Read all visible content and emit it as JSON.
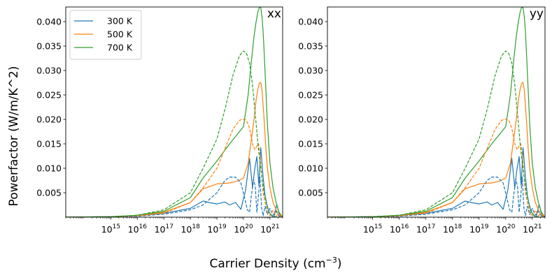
{
  "figure": {
    "ylabel": "Powerfactor (W/m/K^2)",
    "xlabel_prefix": "Carrier Density (cm",
    "xlabel_exp": "−3",
    "xlabel_suffix": ")"
  },
  "chart_data": [
    {
      "type": "line",
      "panel_label": "xx",
      "xscale": "log",
      "xlim": [
        20000000000000.0,
        3e+21
      ],
      "ylim": [
        0,
        0.043
      ],
      "x_ticks": [
        1000000000000000.0,
        1e+16,
        1e+17,
        1e+18,
        1e+19,
        1e+20,
        1e+21
      ],
      "x_tick_labels": [
        {
          "base": "10",
          "exp": "15"
        },
        {
          "base": "10",
          "exp": "16"
        },
        {
          "base": "10",
          "exp": "17"
        },
        {
          "base": "10",
          "exp": "18"
        },
        {
          "base": "10",
          "exp": "19"
        },
        {
          "base": "10",
          "exp": "20"
        },
        {
          "base": "10",
          "exp": "21"
        }
      ],
      "y_ticks": [
        0.005,
        0.01,
        0.015,
        0.02,
        0.025,
        0.03,
        0.035,
        0.04
      ],
      "y_tick_labels": [
        "0.005",
        "0.010",
        "0.015",
        "0.020",
        "0.025",
        "0.030",
        "0.035",
        "0.040"
      ],
      "legend": {
        "placement": "top-left",
        "entries": [
          "300 K",
          "500 K",
          "700 K"
        ]
      },
      "series": [
        {
          "name": "300 K",
          "style": "solid",
          "color": "#1f77b4",
          "x": [
            20000000000000.0,
            1000000000000000.0,
            1e+16,
            1e+17,
            1e+18,
            3e+18,
            5e+18,
            1e+19,
            2e+19,
            3e+19,
            5e+19,
            8e+19,
            1.2e+20,
            1.7e+20,
            2.2e+20,
            2.6e+20,
            3.2e+20,
            3.8e+20,
            4.5e+20,
            5.5e+20,
            6.5e+20,
            7.5e+20,
            9e+20,
            1.1e+21,
            1.4e+21,
            1.8e+21,
            2.2e+21,
            2.6e+21,
            3e+21
          ],
          "y": [
            0,
            0.0001,
            0.0003,
            0.0008,
            0.0018,
            0.0033,
            0.003,
            0.0027,
            0.0031,
            0.0025,
            0.003,
            0.0016,
            0.0055,
            0.012,
            0.006,
            0.0095,
            0.0124,
            0.0065,
            0.0142,
            0.0082,
            0.0045,
            0.0028,
            0.0012,
            0.0004,
            0.0,
            0.0026,
            0.0008,
            0.0,
            0.0
          ]
        },
        {
          "name": "500 K",
          "style": "solid",
          "color": "#ff7f0e",
          "x": [
            20000000000000.0,
            1000000000000000.0,
            1e+16,
            1e+17,
            1e+18,
            3e+18,
            1e+19,
            3e+19,
            6e+19,
            1e+20,
            1.5e+20,
            2e+20,
            2.5e+20,
            3e+20,
            3.5e+20,
            4e+20,
            4.5e+20,
            5e+20,
            6e+20,
            7e+20,
            8e+20,
            1e+21,
            1.3e+21,
            1.7e+21,
            2.2e+21,
            3e+21
          ],
          "y": [
            0,
            0.0001,
            0.0003,
            0.001,
            0.003,
            0.0058,
            0.0068,
            0.007,
            0.0074,
            0.008,
            0.011,
            0.016,
            0.02,
            0.024,
            0.0262,
            0.0274,
            0.0276,
            0.026,
            0.02,
            0.014,
            0.01,
            0.006,
            0.003,
            0.0015,
            0.0003,
            0.0
          ]
        },
        {
          "name": "700 K",
          "style": "solid",
          "color": "#2ca02c",
          "x": [
            20000000000000.0,
            1000000000000000.0,
            1e+16,
            1e+17,
            1e+18,
            3e+18,
            1e+19,
            3e+19,
            1e+20,
            1.5e+20,
            2e+20,
            2.5e+20,
            3e+20,
            3.5e+20,
            4e+20,
            4.5e+20,
            5e+20,
            5.5e+20,
            6e+20,
            7e+20,
            8e+20,
            1e+21,
            1.3e+21,
            1.7e+21,
            2.2e+21,
            3e+21
          ],
          "y": [
            0,
            0.0001,
            0.0004,
            0.0012,
            0.004,
            0.008,
            0.0115,
            0.015,
            0.0185,
            0.025,
            0.032,
            0.037,
            0.04,
            0.042,
            0.043,
            0.0428,
            0.041,
            0.038,
            0.034,
            0.026,
            0.019,
            0.011,
            0.006,
            0.003,
            0.001,
            0.0
          ]
        },
        {
          "name": "",
          "style": "dashed",
          "color": "#1f77b4",
          "x": [
            20000000000000.0,
            1000000000000000.0,
            1e+16,
            1e+17,
            1e+18,
            3e+18,
            1e+19,
            2e+19,
            3e+19,
            5e+19,
            8e+19,
            1.1e+20,
            1.4e+20,
            1.7e+20,
            2e+20,
            2.4e+20,
            2.8e+20,
            3.2e+20,
            3.7e+20,
            4.2e+20,
            4.8e+20,
            5.5e+20,
            6.5e+20,
            8e+20,
            1e+21,
            1.3e+21,
            1.7e+21,
            2.2e+21,
            3e+21
          ],
          "y": [
            0,
            0.0001,
            0.0002,
            0.0006,
            0.0015,
            0.0025,
            0.005,
            0.0075,
            0.0082,
            0.0082,
            0.007,
            0.004,
            0.0015,
            0.001,
            0.0045,
            0.0078,
            0.0062,
            0.001,
            0.0045,
            0.0082,
            0.002,
            0.0003,
            0.0022,
            0.0005,
            0.0018,
            0.0004,
            0.0012,
            0.0002,
            0.0
          ]
        },
        {
          "name": "",
          "style": "dashed",
          "color": "#ff7f0e",
          "x": [
            20000000000000.0,
            1000000000000000.0,
            1e+16,
            1e+17,
            1e+18,
            3e+18,
            1e+19,
            2e+19,
            4e+19,
            7e+19,
            1e+20,
            1.3e+20,
            1.7e+20,
            2.2e+20,
            2.7e+20,
            3.2e+20,
            3.7e+20,
            4.2e+20,
            4.8e+20,
            5.5e+20,
            6.5e+20,
            8e+20,
            1e+21,
            1.3e+21,
            1.7e+21,
            2.2e+21,
            3e+21
          ],
          "y": [
            0,
            0.0001,
            0.0003,
            0.0008,
            0.003,
            0.006,
            0.01,
            0.014,
            0.018,
            0.0198,
            0.0201,
            0.0198,
            0.0182,
            0.015,
            0.0138,
            0.0146,
            0.015,
            0.013,
            0.009,
            0.005,
            0.003,
            0.001,
            0.0003,
            0.0014,
            0.0003,
            0.0007,
            0.0
          ]
        },
        {
          "name": "",
          "style": "dashed",
          "color": "#2ca02c",
          "x": [
            20000000000000.0,
            1000000000000000.0,
            1e+16,
            1e+17,
            1e+18,
            3e+18,
            1e+19,
            2e+19,
            4e+19,
            7e+19,
            1e+20,
            1.3e+20,
            1.7e+20,
            2.2e+20,
            2.8e+20,
            3.5e+20,
            4.2e+20,
            5e+20,
            6e+20,
            7.5e+20,
            9e+20,
            1.2e+21,
            1.6e+21,
            2.2e+21,
            3e+21
          ],
          "y": [
            0,
            0.0001,
            0.0004,
            0.0015,
            0.005,
            0.01,
            0.016,
            0.022,
            0.029,
            0.033,
            0.034,
            0.0335,
            0.0315,
            0.027,
            0.021,
            0.015,
            0.011,
            0.008,
            0.005,
            0.0025,
            0.001,
            0.0003,
            0.0001,
            0.0,
            0.0
          ]
        }
      ]
    },
    {
      "type": "line",
      "panel_label": "yy",
      "xscale": "log",
      "xlim": [
        20000000000000.0,
        3e+21
      ],
      "ylim": [
        0,
        0.043
      ],
      "x_ticks": [
        1000000000000000.0,
        1e+16,
        1e+17,
        1e+18,
        1e+19,
        1e+20,
        1e+21
      ],
      "x_tick_labels": [
        {
          "base": "10",
          "exp": "15"
        },
        {
          "base": "10",
          "exp": "16"
        },
        {
          "base": "10",
          "exp": "17"
        },
        {
          "base": "10",
          "exp": "18"
        },
        {
          "base": "10",
          "exp": "19"
        },
        {
          "base": "10",
          "exp": "20"
        },
        {
          "base": "10",
          "exp": "21"
        }
      ],
      "y_ticks": [
        0.005,
        0.01,
        0.015,
        0.02,
        0.025,
        0.03,
        0.035,
        0.04
      ],
      "y_tick_labels": [
        "0.005",
        "0.010",
        "0.015",
        "0.020",
        "0.025",
        "0.030",
        "0.035",
        "0.040"
      ],
      "series": [
        {
          "name": "300 K",
          "style": "solid",
          "color": "#1f77b4",
          "x": [
            20000000000000.0,
            1000000000000000.0,
            1e+16,
            1e+17,
            1e+18,
            3e+18,
            5e+18,
            1e+19,
            2e+19,
            3e+19,
            5e+19,
            8e+19,
            1.2e+20,
            1.7e+20,
            2.2e+20,
            2.6e+20,
            3.2e+20,
            3.8e+20,
            4.5e+20,
            5.5e+20,
            6.5e+20,
            7.5e+20,
            9e+20,
            1.1e+21,
            1.4e+21,
            1.8e+21,
            2.2e+21,
            2.6e+21,
            3e+21
          ],
          "y": [
            0,
            0.0001,
            0.0003,
            0.0008,
            0.0018,
            0.0033,
            0.003,
            0.0027,
            0.0031,
            0.0025,
            0.003,
            0.0016,
            0.0055,
            0.012,
            0.006,
            0.0095,
            0.0124,
            0.0065,
            0.0142,
            0.0082,
            0.0045,
            0.0028,
            0.0012,
            0.0004,
            0.0,
            0.0026,
            0.0008,
            0.0,
            0.0
          ]
        },
        {
          "name": "500 K",
          "style": "solid",
          "color": "#ff7f0e",
          "x": [
            20000000000000.0,
            1000000000000000.0,
            1e+16,
            1e+17,
            1e+18,
            3e+18,
            1e+19,
            3e+19,
            6e+19,
            1e+20,
            1.5e+20,
            2e+20,
            2.5e+20,
            3e+20,
            3.5e+20,
            4e+20,
            4.5e+20,
            5e+20,
            6e+20,
            7e+20,
            8e+20,
            1e+21,
            1.3e+21,
            1.7e+21,
            2.2e+21,
            3e+21
          ],
          "y": [
            0,
            0.0001,
            0.0003,
            0.001,
            0.003,
            0.0058,
            0.0068,
            0.007,
            0.0074,
            0.008,
            0.011,
            0.016,
            0.02,
            0.024,
            0.0262,
            0.0274,
            0.0276,
            0.026,
            0.02,
            0.014,
            0.01,
            0.006,
            0.003,
            0.0015,
            0.0003,
            0.0
          ]
        },
        {
          "name": "700 K",
          "style": "solid",
          "color": "#2ca02c",
          "x": [
            20000000000000.0,
            1000000000000000.0,
            1e+16,
            1e+17,
            1e+18,
            3e+18,
            1e+19,
            3e+19,
            1e+20,
            1.5e+20,
            2e+20,
            2.5e+20,
            3e+20,
            3.5e+20,
            4e+20,
            4.5e+20,
            5e+20,
            5.5e+20,
            6e+20,
            7e+20,
            8e+20,
            1e+21,
            1.3e+21,
            1.7e+21,
            2.2e+21,
            3e+21
          ],
          "y": [
            0,
            0.0001,
            0.0004,
            0.0012,
            0.004,
            0.008,
            0.0115,
            0.015,
            0.0185,
            0.025,
            0.032,
            0.037,
            0.04,
            0.042,
            0.043,
            0.0428,
            0.041,
            0.038,
            0.034,
            0.026,
            0.019,
            0.011,
            0.006,
            0.003,
            0.001,
            0.0
          ]
        },
        {
          "name": "",
          "style": "dashed",
          "color": "#1f77b4",
          "x": [
            20000000000000.0,
            1000000000000000.0,
            1e+16,
            1e+17,
            1e+18,
            3e+18,
            1e+19,
            2e+19,
            3e+19,
            5e+19,
            8e+19,
            1.1e+20,
            1.4e+20,
            1.7e+20,
            2e+20,
            2.4e+20,
            2.8e+20,
            3.2e+20,
            3.7e+20,
            4.2e+20,
            4.8e+20,
            5.5e+20,
            6.5e+20,
            8e+20,
            1e+21,
            1.3e+21,
            1.7e+21,
            2.2e+21,
            3e+21
          ],
          "y": [
            0,
            0.0001,
            0.0002,
            0.0006,
            0.0015,
            0.0025,
            0.005,
            0.0075,
            0.0082,
            0.0082,
            0.007,
            0.004,
            0.0015,
            0.001,
            0.0045,
            0.0078,
            0.0062,
            0.001,
            0.0045,
            0.0082,
            0.002,
            0.0003,
            0.0022,
            0.0005,
            0.0018,
            0.0004,
            0.0012,
            0.0002,
            0.0
          ]
        },
        {
          "name": "",
          "style": "dashed",
          "color": "#ff7f0e",
          "x": [
            20000000000000.0,
            1000000000000000.0,
            1e+16,
            1e+17,
            1e+18,
            3e+18,
            1e+19,
            2e+19,
            4e+19,
            7e+19,
            1e+20,
            1.3e+20,
            1.7e+20,
            2.2e+20,
            2.7e+20,
            3.2e+20,
            3.7e+20,
            4.2e+20,
            4.8e+20,
            5.5e+20,
            6.5e+20,
            8e+20,
            1e+21,
            1.3e+21,
            1.7e+21,
            2.2e+21,
            3e+21
          ],
          "y": [
            0,
            0.0001,
            0.0003,
            0.0008,
            0.003,
            0.006,
            0.01,
            0.014,
            0.018,
            0.0198,
            0.0201,
            0.0198,
            0.0182,
            0.015,
            0.0138,
            0.0146,
            0.015,
            0.013,
            0.009,
            0.005,
            0.003,
            0.001,
            0.0003,
            0.0014,
            0.0003,
            0.0007,
            0.0
          ]
        },
        {
          "name": "",
          "style": "dashed",
          "color": "#2ca02c",
          "x": [
            20000000000000.0,
            1000000000000000.0,
            1e+16,
            1e+17,
            1e+18,
            3e+18,
            1e+19,
            2e+19,
            4e+19,
            7e+19,
            1e+20,
            1.3e+20,
            1.7e+20,
            2.2e+20,
            2.8e+20,
            3.5e+20,
            4.2e+20,
            5e+20,
            6e+20,
            7.5e+20,
            9e+20,
            1.2e+21,
            1.6e+21,
            2.2e+21,
            3e+21
          ],
          "y": [
            0,
            0.0001,
            0.0004,
            0.0015,
            0.005,
            0.01,
            0.016,
            0.022,
            0.029,
            0.033,
            0.034,
            0.0335,
            0.0315,
            0.027,
            0.021,
            0.015,
            0.011,
            0.008,
            0.005,
            0.0025,
            0.001,
            0.0003,
            0.0001,
            0.0,
            0.0
          ]
        }
      ]
    }
  ]
}
